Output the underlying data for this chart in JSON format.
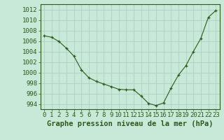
{
  "x": [
    0,
    1,
    2,
    3,
    4,
    5,
    6,
    7,
    8,
    9,
    10,
    11,
    12,
    13,
    14,
    15,
    16,
    17,
    18,
    19,
    20,
    21,
    22,
    23
  ],
  "y": [
    1007.0,
    1006.7,
    1005.9,
    1004.6,
    1003.1,
    1000.5,
    999.0,
    998.3,
    997.8,
    997.3,
    996.8,
    996.7,
    996.7,
    995.5,
    994.1,
    993.7,
    994.2,
    997.0,
    999.5,
    1001.3,
    1004.0,
    1006.5,
    1010.5,
    1011.8
  ],
  "line_color": "#2d5a1b",
  "marker_color": "#2d5a1b",
  "bg_color": "#c8e8d8",
  "grid_color": "#a8ccc0",
  "axis_color": "#2d5a1b",
  "title": "Graphe pression niveau de la mer (hPa)",
  "tick_fontsize": 6.5,
  "title_fontsize": 7.5,
  "ylim": [
    993,
    1013
  ],
  "yticks": [
    994,
    996,
    998,
    1000,
    1002,
    1004,
    1006,
    1008,
    1010,
    1012
  ],
  "xlim": [
    -0.5,
    23.5
  ],
  "xticks": [
    0,
    1,
    2,
    3,
    4,
    5,
    6,
    7,
    8,
    9,
    10,
    11,
    12,
    13,
    14,
    15,
    16,
    17,
    18,
    19,
    20,
    21,
    22,
    23
  ]
}
